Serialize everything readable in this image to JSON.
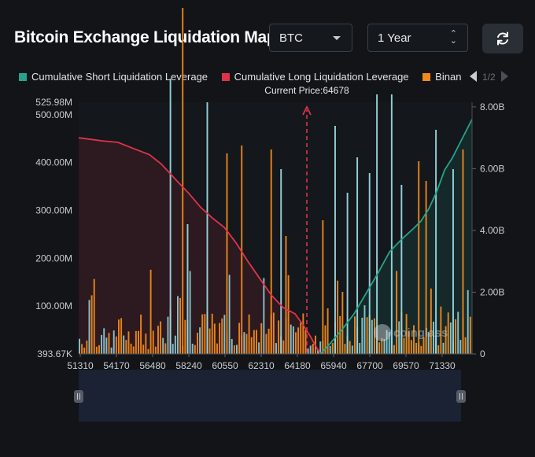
{
  "header": {
    "title": "Bitcoin Exchange Liquidation Map",
    "symbol": "BTC",
    "range": "1 Year",
    "refresh_icon": "refresh-icon"
  },
  "legend": {
    "items": [
      {
        "label": "Cumulative Short Liquidation Leverage",
        "color": "#26a48b"
      },
      {
        "label": "Cumulative Long Liquidation Leverage",
        "color": "#e0334a"
      },
      {
        "label": "Binance",
        "color": "#f0891a"
      }
    ],
    "page": "1/2"
  },
  "watermark": "coinglass",
  "chart_data": {
    "type": "bar",
    "current_price_label": "Current Price:64678",
    "current_price": 64678,
    "x_ticks": [
      "51310",
      "54170",
      "56480",
      "58240",
      "60550",
      "62310",
      "64180",
      "65940",
      "67700",
      "69570",
      "71330"
    ],
    "left_axis": {
      "ticks": [
        "393.67K",
        "100.00M",
        "200.00M",
        "300.00M",
        "400.00M",
        "500.00M",
        "525.98M"
      ],
      "values": [
        393670,
        100000000,
        200000000,
        300000000,
        400000000,
        500000000,
        525980000
      ]
    },
    "right_axis": {
      "ticks": [
        "0",
        "2.00B",
        "4.00B",
        "6.00B",
        "8.00B"
      ],
      "values": [
        0,
        2000000000,
        4000000000,
        6000000000,
        8000000000
      ]
    },
    "long_cumulative_points": [
      [
        0.0,
        7.0
      ],
      [
        0.06,
        6.9
      ],
      [
        0.1,
        6.85
      ],
      [
        0.14,
        6.65
      ],
      [
        0.18,
        6.45
      ],
      [
        0.21,
        6.15
      ],
      [
        0.25,
        5.6
      ],
      [
        0.28,
        5.2
      ],
      [
        0.31,
        4.75
      ],
      [
        0.34,
        4.4
      ],
      [
        0.37,
        4.1
      ],
      [
        0.4,
        3.6
      ],
      [
        0.43,
        3.0
      ],
      [
        0.46,
        2.45
      ],
      [
        0.49,
        1.9
      ],
      [
        0.52,
        1.5
      ],
      [
        0.55,
        1.3
      ],
      [
        0.57,
        0.95
      ],
      [
        0.59,
        0.55
      ],
      [
        0.605,
        0.2
      ],
      [
        0.615,
        0.0
      ]
    ],
    "short_cumulative_points": [
      [
        0.615,
        0.0
      ],
      [
        0.64,
        0.35
      ],
      [
        0.67,
        0.8
      ],
      [
        0.7,
        1.3
      ],
      [
        0.73,
        1.95
      ],
      [
        0.76,
        2.6
      ],
      [
        0.79,
        3.3
      ],
      [
        0.82,
        3.7
      ],
      [
        0.85,
        4.05
      ],
      [
        0.87,
        4.3
      ],
      [
        0.89,
        4.7
      ],
      [
        0.91,
        5.25
      ],
      [
        0.93,
        5.95
      ],
      [
        0.95,
        6.35
      ],
      [
        0.97,
        6.85
      ],
      [
        0.99,
        7.35
      ],
      [
        1.0,
        7.6
      ]
    ]
  }
}
